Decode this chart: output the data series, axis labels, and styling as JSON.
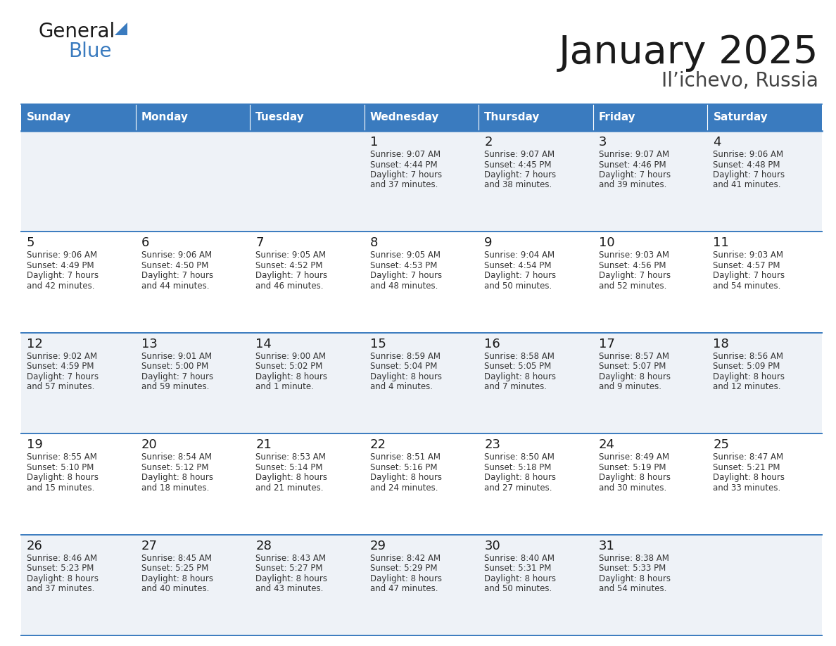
{
  "title": "January 2025",
  "subtitle": "Il’ichevo, Russia",
  "header_color": "#3a7bbf",
  "header_text_color": "#ffffff",
  "cell_bg_even": "#eef2f7",
  "cell_bg_odd": "#ffffff",
  "border_color": "#3a7bbf",
  "day_names": [
    "Sunday",
    "Monday",
    "Tuesday",
    "Wednesday",
    "Thursday",
    "Friday",
    "Saturday"
  ],
  "title_color": "#1a1a1a",
  "subtitle_color": "#444444",
  "text_color": "#333333",
  "days": [
    {
      "day": 1,
      "col": 3,
      "row": 0,
      "sunrise": "9:07 AM",
      "sunset": "4:44 PM",
      "daylight_h": "7 hours",
      "daylight_m": "37 minutes."
    },
    {
      "day": 2,
      "col": 4,
      "row": 0,
      "sunrise": "9:07 AM",
      "sunset": "4:45 PM",
      "daylight_h": "7 hours",
      "daylight_m": "38 minutes."
    },
    {
      "day": 3,
      "col": 5,
      "row": 0,
      "sunrise": "9:07 AM",
      "sunset": "4:46 PM",
      "daylight_h": "7 hours",
      "daylight_m": "39 minutes."
    },
    {
      "day": 4,
      "col": 6,
      "row": 0,
      "sunrise": "9:06 AM",
      "sunset": "4:48 PM",
      "daylight_h": "7 hours",
      "daylight_m": "41 minutes."
    },
    {
      "day": 5,
      "col": 0,
      "row": 1,
      "sunrise": "9:06 AM",
      "sunset": "4:49 PM",
      "daylight_h": "7 hours",
      "daylight_m": "42 minutes."
    },
    {
      "day": 6,
      "col": 1,
      "row": 1,
      "sunrise": "9:06 AM",
      "sunset": "4:50 PM",
      "daylight_h": "7 hours",
      "daylight_m": "44 minutes."
    },
    {
      "day": 7,
      "col": 2,
      "row": 1,
      "sunrise": "9:05 AM",
      "sunset": "4:52 PM",
      "daylight_h": "7 hours",
      "daylight_m": "46 minutes."
    },
    {
      "day": 8,
      "col": 3,
      "row": 1,
      "sunrise": "9:05 AM",
      "sunset": "4:53 PM",
      "daylight_h": "7 hours",
      "daylight_m": "48 minutes."
    },
    {
      "day": 9,
      "col": 4,
      "row": 1,
      "sunrise": "9:04 AM",
      "sunset": "4:54 PM",
      "daylight_h": "7 hours",
      "daylight_m": "50 minutes."
    },
    {
      "day": 10,
      "col": 5,
      "row": 1,
      "sunrise": "9:03 AM",
      "sunset": "4:56 PM",
      "daylight_h": "7 hours",
      "daylight_m": "52 minutes."
    },
    {
      "day": 11,
      "col": 6,
      "row": 1,
      "sunrise": "9:03 AM",
      "sunset": "4:57 PM",
      "daylight_h": "7 hours",
      "daylight_m": "54 minutes."
    },
    {
      "day": 12,
      "col": 0,
      "row": 2,
      "sunrise": "9:02 AM",
      "sunset": "4:59 PM",
      "daylight_h": "7 hours",
      "daylight_m": "57 minutes."
    },
    {
      "day": 13,
      "col": 1,
      "row": 2,
      "sunrise": "9:01 AM",
      "sunset": "5:00 PM",
      "daylight_h": "7 hours",
      "daylight_m": "59 minutes."
    },
    {
      "day": 14,
      "col": 2,
      "row": 2,
      "sunrise": "9:00 AM",
      "sunset": "5:02 PM",
      "daylight_h": "8 hours",
      "daylight_m": "1 minute."
    },
    {
      "day": 15,
      "col": 3,
      "row": 2,
      "sunrise": "8:59 AM",
      "sunset": "5:04 PM",
      "daylight_h": "8 hours",
      "daylight_m": "4 minutes."
    },
    {
      "day": 16,
      "col": 4,
      "row": 2,
      "sunrise": "8:58 AM",
      "sunset": "5:05 PM",
      "daylight_h": "8 hours",
      "daylight_m": "7 minutes."
    },
    {
      "day": 17,
      "col": 5,
      "row": 2,
      "sunrise": "8:57 AM",
      "sunset": "5:07 PM",
      "daylight_h": "8 hours",
      "daylight_m": "9 minutes."
    },
    {
      "day": 18,
      "col": 6,
      "row": 2,
      "sunrise": "8:56 AM",
      "sunset": "5:09 PM",
      "daylight_h": "8 hours",
      "daylight_m": "12 minutes."
    },
    {
      "day": 19,
      "col": 0,
      "row": 3,
      "sunrise": "8:55 AM",
      "sunset": "5:10 PM",
      "daylight_h": "8 hours",
      "daylight_m": "15 minutes."
    },
    {
      "day": 20,
      "col": 1,
      "row": 3,
      "sunrise": "8:54 AM",
      "sunset": "5:12 PM",
      "daylight_h": "8 hours",
      "daylight_m": "18 minutes."
    },
    {
      "day": 21,
      "col": 2,
      "row": 3,
      "sunrise": "8:53 AM",
      "sunset": "5:14 PM",
      "daylight_h": "8 hours",
      "daylight_m": "21 minutes."
    },
    {
      "day": 22,
      "col": 3,
      "row": 3,
      "sunrise": "8:51 AM",
      "sunset": "5:16 PM",
      "daylight_h": "8 hours",
      "daylight_m": "24 minutes."
    },
    {
      "day": 23,
      "col": 4,
      "row": 3,
      "sunrise": "8:50 AM",
      "sunset": "5:18 PM",
      "daylight_h": "8 hours",
      "daylight_m": "27 minutes."
    },
    {
      "day": 24,
      "col": 5,
      "row": 3,
      "sunrise": "8:49 AM",
      "sunset": "5:19 PM",
      "daylight_h": "8 hours",
      "daylight_m": "30 minutes."
    },
    {
      "day": 25,
      "col": 6,
      "row": 3,
      "sunrise": "8:47 AM",
      "sunset": "5:21 PM",
      "daylight_h": "8 hours",
      "daylight_m": "33 minutes."
    },
    {
      "day": 26,
      "col": 0,
      "row": 4,
      "sunrise": "8:46 AM",
      "sunset": "5:23 PM",
      "daylight_h": "8 hours",
      "daylight_m": "37 minutes."
    },
    {
      "day": 27,
      "col": 1,
      "row": 4,
      "sunrise": "8:45 AM",
      "sunset": "5:25 PM",
      "daylight_h": "8 hours",
      "daylight_m": "40 minutes."
    },
    {
      "day": 28,
      "col": 2,
      "row": 4,
      "sunrise": "8:43 AM",
      "sunset": "5:27 PM",
      "daylight_h": "8 hours",
      "daylight_m": "43 minutes."
    },
    {
      "day": 29,
      "col": 3,
      "row": 4,
      "sunrise": "8:42 AM",
      "sunset": "5:29 PM",
      "daylight_h": "8 hours",
      "daylight_m": "47 minutes."
    },
    {
      "day": 30,
      "col": 4,
      "row": 4,
      "sunrise": "8:40 AM",
      "sunset": "5:31 PM",
      "daylight_h": "8 hours",
      "daylight_m": "50 minutes."
    },
    {
      "day": 31,
      "col": 5,
      "row": 4,
      "sunrise": "8:38 AM",
      "sunset": "5:33 PM",
      "daylight_h": "8 hours",
      "daylight_m": "54 minutes."
    }
  ],
  "logo_general_color": "#1a1a1a",
  "logo_blue_color": "#3a7bbf",
  "logo_triangle_color": "#3a7bbf"
}
